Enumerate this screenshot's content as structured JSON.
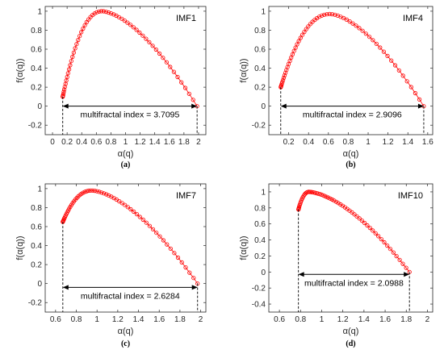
{
  "chart_data": [
    {
      "type": "line",
      "panel_label": "(a)",
      "title": "IMF1",
      "xlabel": "α(q)",
      "ylabel": "f(α(q))",
      "xlim": [
        -0.1,
        2.1
      ],
      "ylim": [
        -0.3,
        1.05
      ],
      "xticks": [
        "0",
        "0.2",
        "0.4",
        "0.6",
        "0.8",
        "1",
        "1.2",
        "1.4",
        "1.6",
        "1.8",
        "2"
      ],
      "xtick_values": [
        0,
        0.2,
        0.4,
        0.6,
        0.8,
        1,
        1.2,
        1.4,
        1.6,
        1.8,
        2
      ],
      "yticks": [
        "-0.2",
        "0",
        "0.2",
        "0.4",
        "0.6",
        "0.8",
        "1"
      ],
      "ytick_values": [
        -0.2,
        0,
        0.2,
        0.4,
        0.6,
        0.8,
        1
      ],
      "spectrum": {
        "alpha_min": 0.14,
        "alpha_peak": 0.68,
        "alpha_max": 1.98,
        "f_max": 1.0,
        "f_left": 0.1,
        "f_right": 0.0
      },
      "annotation": {
        "text": "multifractal index = 3.7095",
        "y": 0.0,
        "x_from": 0.14,
        "x_to": 1.98
      }
    },
    {
      "type": "line",
      "panel_label": "(b)",
      "title": "IMF4",
      "xlabel": "α(q)",
      "ylabel": "f(α(q))",
      "xlim": [
        0.0,
        1.65
      ],
      "ylim": [
        -0.3,
        1.05
      ],
      "xticks": [
        "0.2",
        "0.4",
        "0.6",
        "0.8",
        "1",
        "1.2",
        "1.4",
        "1.6"
      ],
      "xtick_values": [
        0.2,
        0.4,
        0.6,
        0.8,
        1,
        1.2,
        1.4,
        1.6
      ],
      "yticks": [
        "-0.2",
        "0",
        "0.2",
        "0.4",
        "0.6",
        "0.8",
        "1"
      ],
      "ytick_values": [
        -0.2,
        0,
        0.2,
        0.4,
        0.6,
        0.8,
        1
      ],
      "spectrum": {
        "alpha_min": 0.12,
        "alpha_peak": 0.62,
        "alpha_max": 1.56,
        "f_max": 0.97,
        "f_left": 0.2,
        "f_right": 0.0
      },
      "annotation": {
        "text": "multifractal index = 2.9096",
        "y": 0.0,
        "x_from": 0.12,
        "x_to": 1.56
      }
    },
    {
      "type": "line",
      "panel_label": "(c)",
      "title": "IMF7",
      "xlabel": "α(q)",
      "ylabel": "f(α(q))",
      "xlim": [
        0.5,
        2.05
      ],
      "ylim": [
        -0.3,
        1.05
      ],
      "xticks": [
        "0.6",
        "0.8",
        "1",
        "1.2",
        "1.4",
        "1.6",
        "1.8",
        "2"
      ],
      "xtick_values": [
        0.6,
        0.8,
        1,
        1.2,
        1.4,
        1.6,
        1.8,
        2
      ],
      "yticks": [
        "-0.2",
        "0",
        "0.2",
        "0.4",
        "0.6",
        "0.8",
        "1"
      ],
      "ytick_values": [
        -0.2,
        0,
        0.2,
        0.4,
        0.6,
        0.8,
        1
      ],
      "spectrum": {
        "alpha_min": 0.67,
        "alpha_peak": 0.95,
        "alpha_max": 1.97,
        "f_max": 0.98,
        "f_left": 0.65,
        "f_right": 0.0
      },
      "annotation": {
        "text": "multifractal index = 2.6284",
        "y": -0.04,
        "x_from": 0.67,
        "x_to": 1.97
      }
    },
    {
      "type": "line",
      "panel_label": "(d)",
      "title": "IMF10",
      "xlabel": "α(q)",
      "ylabel": "f(α(q))",
      "xlim": [
        0.5,
        2.05
      ],
      "ylim": [
        -0.5,
        1.1
      ],
      "xticks": [
        "0.6",
        "0.8",
        "1",
        "1.2",
        "1.4",
        "1.6",
        "1.8",
        "2"
      ],
      "xtick_values": [
        0.6,
        0.8,
        1,
        1.2,
        1.4,
        1.6,
        1.8,
        2
      ],
      "yticks": [
        "-0.4",
        "-0.2",
        "0",
        "0.2",
        "0.4",
        "0.6",
        "0.8",
        "1"
      ],
      "ytick_values": [
        -0.4,
        -0.2,
        0,
        0.2,
        0.4,
        0.6,
        0.8,
        1
      ],
      "spectrum": {
        "alpha_min": 0.78,
        "alpha_peak": 0.88,
        "alpha_max": 1.83,
        "f_max": 1.0,
        "f_left": 0.78,
        "f_right": 0.0
      },
      "annotation": {
        "text": "multifractal index = 2.0988",
        "y": -0.03,
        "x_from": 0.78,
        "x_to": 1.83
      }
    }
  ],
  "style": {
    "series_color": "#ff0000",
    "axis_color": "#262626",
    "grid": false
  }
}
